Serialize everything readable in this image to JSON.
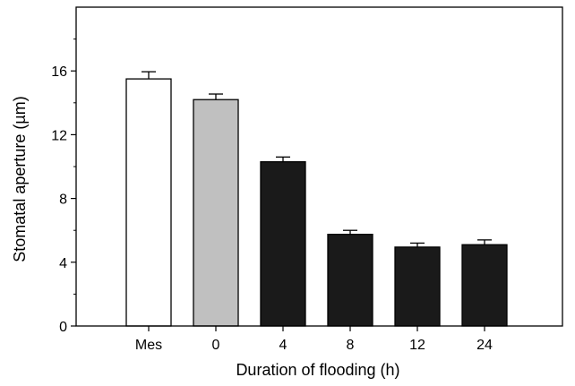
{
  "chart_data": {
    "type": "bar",
    "title": "",
    "xlabel": "Duration of flooding (h)",
    "ylabel": "Stomatal aperture (µm)",
    "categories": [
      "Mes",
      "0",
      "4",
      "8",
      "12",
      "24"
    ],
    "values": [
      15.5,
      14.2,
      10.3,
      5.75,
      4.95,
      5.1
    ],
    "errors": [
      0.45,
      0.35,
      0.3,
      0.25,
      0.25,
      0.3
    ],
    "bar_colors": [
      "#ffffff",
      "#c0c0c0",
      "#1a1a1a",
      "#1a1a1a",
      "#1a1a1a",
      "#1a1a1a"
    ],
    "ylim": [
      0,
      20
    ],
    "yticks": [
      0,
      4,
      8,
      12,
      16
    ],
    "grid": false,
    "legend": "none"
  }
}
